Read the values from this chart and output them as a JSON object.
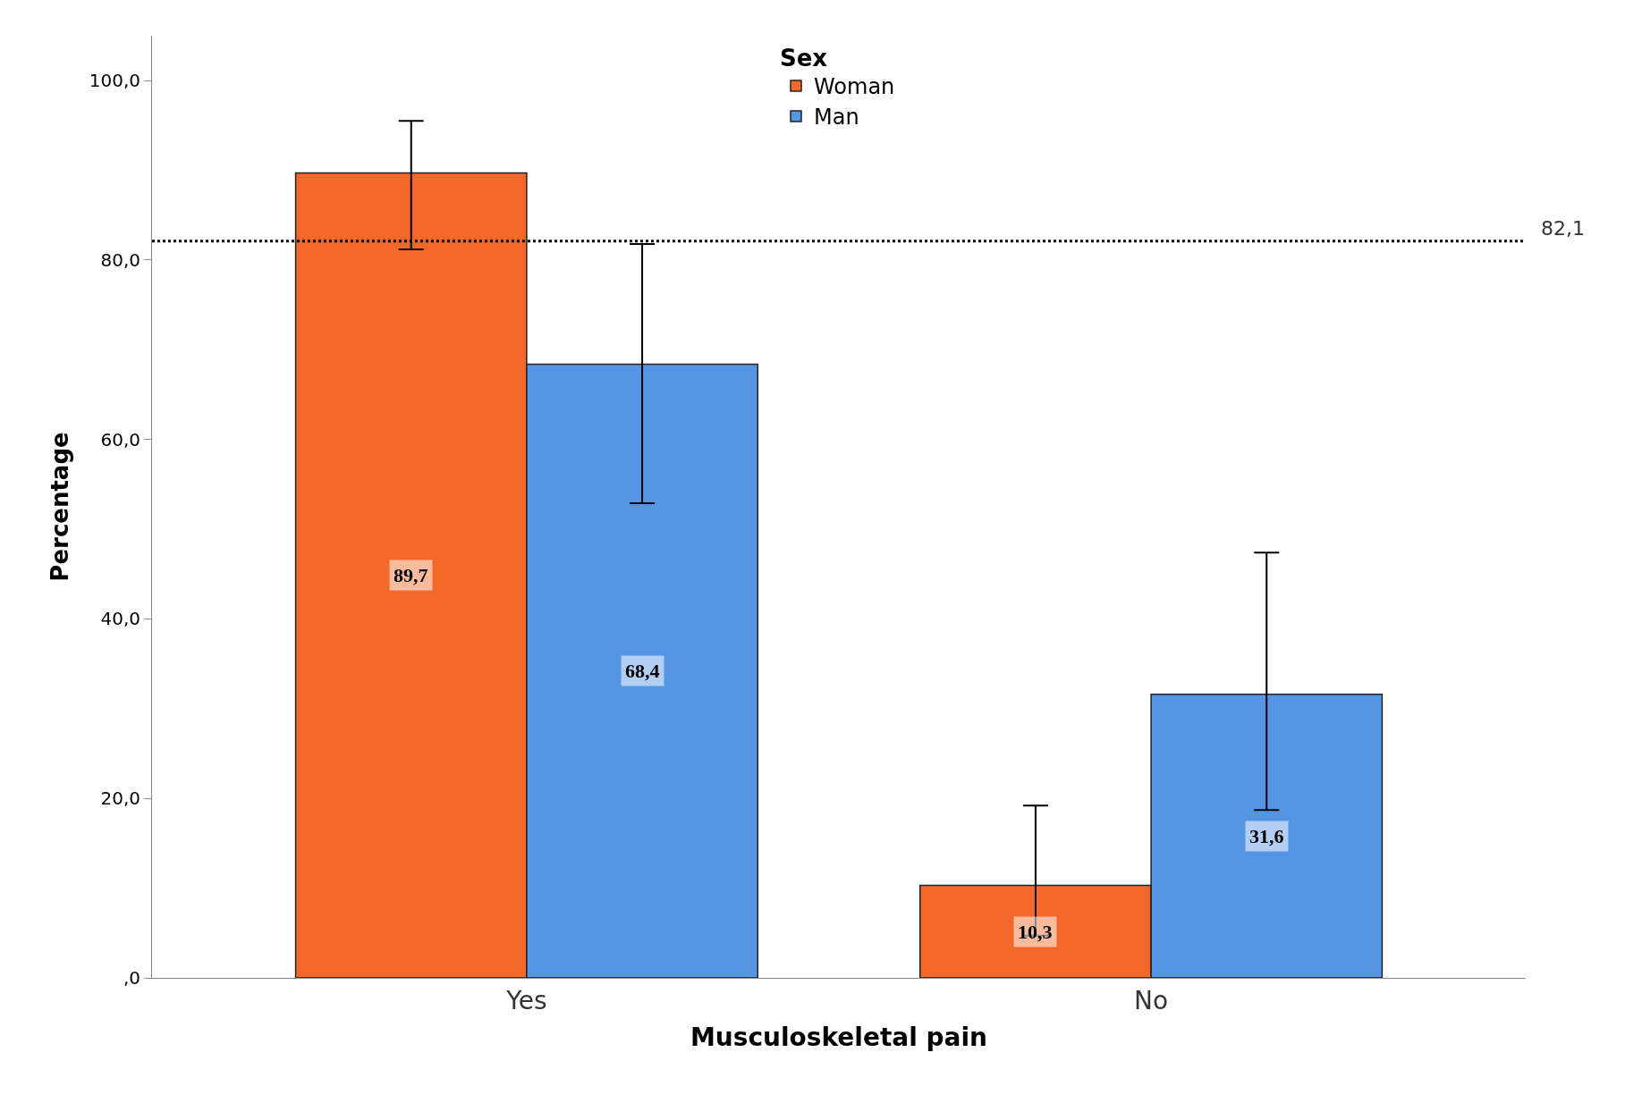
{
  "chart_data": {
    "type": "bar",
    "xlabel": "Musculoskeletal pain",
    "ylabel": "Percentage",
    "legend_title": "Sex",
    "categories": [
      "Yes",
      "No"
    ],
    "series": [
      {
        "name": "Woman",
        "color": "#f26829",
        "values": [
          89.7,
          10.3
        ],
        "errors": [
          [
            81.2,
            95.5
          ],
          [
            4.7,
            19.2
          ]
        ],
        "value_labels": [
          "89,7",
          "10,3"
        ]
      },
      {
        "name": "Man",
        "color": "#5596e4",
        "values": [
          68.4,
          31.6
        ],
        "errors": [
          [
            52.9,
            81.8
          ],
          [
            18.7,
            47.4
          ]
        ],
        "value_labels": [
          "68,4",
          "31,6"
        ]
      }
    ],
    "ylim": [
      0,
      105
    ],
    "yticks": [
      {
        "value": 0,
        "label": ",0"
      },
      {
        "value": 20,
        "label": "20,0"
      },
      {
        "value": 40,
        "label": "40,0"
      },
      {
        "value": 60,
        "label": "60,0"
      },
      {
        "value": 80,
        "label": "80,0"
      },
      {
        "value": 100,
        "label": "100,0"
      }
    ],
    "ref_lines": [
      {
        "axis": "y",
        "value": 82.1,
        "label": "82,1",
        "color": "#000000",
        "line_style": "dotted"
      }
    ],
    "legend": "top"
  }
}
